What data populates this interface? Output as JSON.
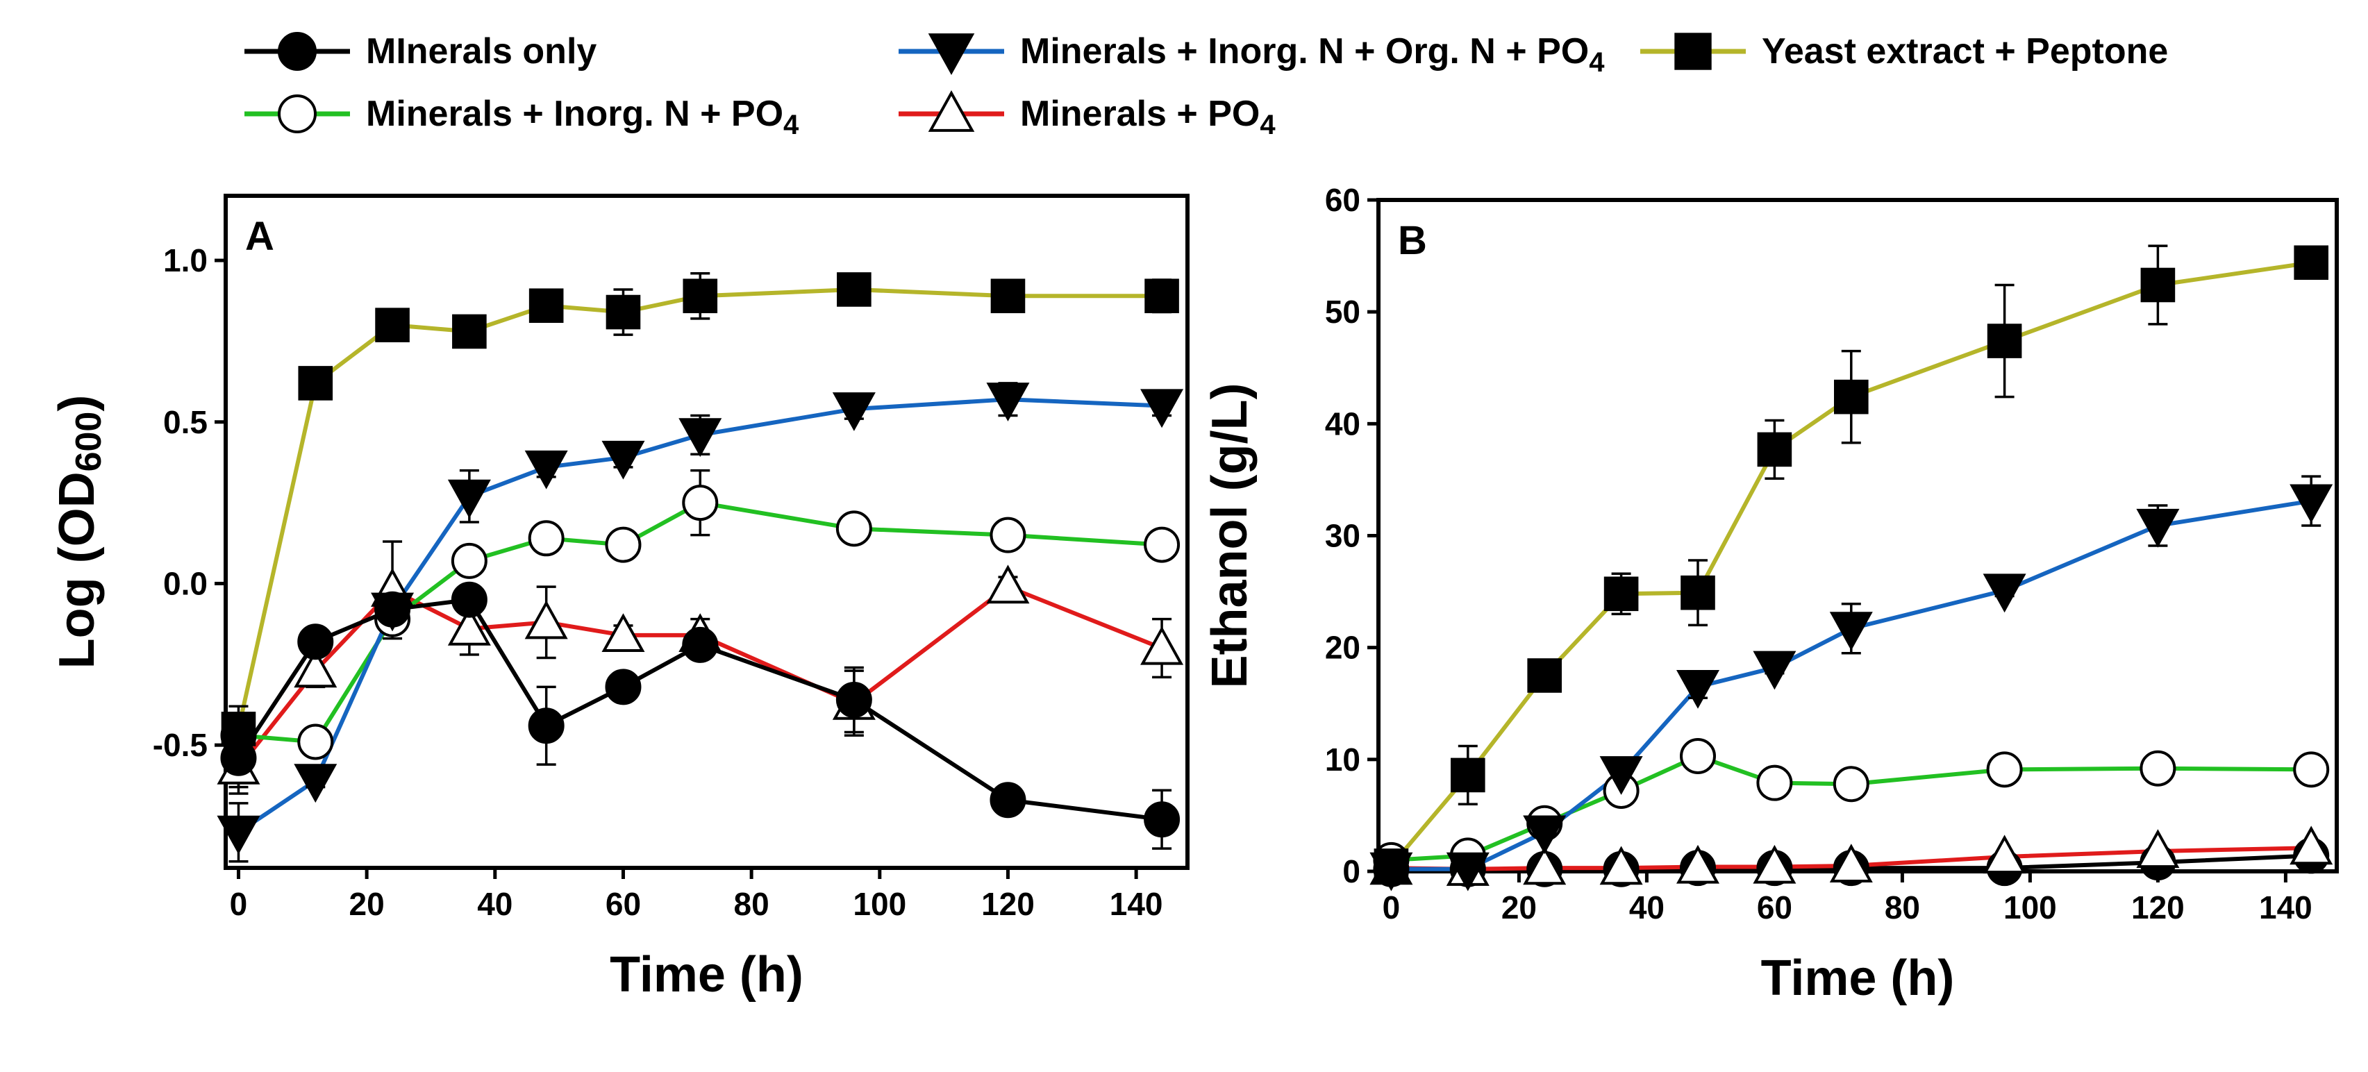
{
  "legend": {
    "entries": [
      {
        "label": "MInerals only",
        "marker": "filled-circle",
        "color": "#000000"
      },
      {
        "label": "Minerals + Inorg. N + Org. N + PO",
        "sub": "4",
        "marker": "filled-down-triangle",
        "color": "#1565c0"
      },
      {
        "label": "Yeast extract + Peptone",
        "marker": "filled-square",
        "color": "#b5b52a"
      },
      {
        "label": "Minerals + Inorg. N + PO",
        "sub": "4",
        "marker": "open-circle",
        "color": "#22c022"
      },
      {
        "label": "Minerals + PO",
        "sub": "4",
        "marker": "open-up-triangle",
        "color": "#e01b1b"
      }
    ]
  },
  "chart_data": [
    {
      "type": "line",
      "panel_label": "A",
      "xlabel": "Time (h)",
      "ylabel_main": "Log (OD",
      "ylabel_sub": "600",
      "ylabel_close": ")",
      "xlim": [
        -2,
        148
      ],
      "ylim": [
        -0.88,
        1.2
      ],
      "xticks": [
        0,
        20,
        40,
        60,
        80,
        100,
        120,
        140
      ],
      "xtick_labels": [
        "0",
        "20",
        "40",
        "60",
        "80",
        "100",
        "120",
        "140"
      ],
      "yticks": [
        -0.5,
        0,
        0.5,
        1.0
      ],
      "ytick_labels": [
        "-0.5",
        "0.0",
        "0.5",
        "1.0"
      ],
      "series": [
        {
          "name": "Minerals + PO4",
          "color": "#e01b1b",
          "marker": "open-up-triangle",
          "x": [
            0,
            12,
            24,
            36,
            48,
            60,
            72,
            96,
            120,
            144
          ],
          "y": [
            -0.57,
            -0.27,
            -0.02,
            -0.14,
            -0.12,
            -0.16,
            -0.16,
            -0.37,
            -0.01,
            -0.2
          ],
          "err": [
            0.08,
            0.05,
            0.15,
            0.08,
            0.11,
            0.03,
            0.05,
            0.1,
            0.03,
            0.09
          ]
        },
        {
          "name": "Minerals + Inorg. N + PO4",
          "color": "#22c022",
          "marker": "open-circle",
          "x": [
            0,
            12,
            24,
            36,
            48,
            60,
            72,
            96,
            120,
            144
          ],
          "y": [
            -0.47,
            -0.49,
            -0.11,
            0.07,
            0.14,
            0.12,
            0.25,
            0.17,
            0.15,
            0.12
          ],
          "err": [
            0.03,
            0.03,
            0.04,
            0.03,
            0.02,
            0.03,
            0.1,
            0.02,
            0.02,
            0.02
          ]
        },
        {
          "name": "MInerals only",
          "color": "#000000",
          "marker": "filled-circle",
          "x": [
            0,
            12,
            24,
            36,
            48,
            60,
            72,
            96,
            120,
            144
          ],
          "y": [
            -0.54,
            -0.18,
            -0.08,
            -0.05,
            -0.44,
            -0.32,
            -0.19,
            -0.36,
            -0.67,
            -0.73
          ],
          "err": [
            0.09,
            0.03,
            0.03,
            0.04,
            0.12,
            0.03,
            0.04,
            0.1,
            0.02,
            0.09
          ]
        },
        {
          "name": "Minerals + Inorg. N + Org. N + PO4",
          "color": "#1565c0",
          "marker": "filled-down-triangle",
          "x": [
            0,
            12,
            24,
            36,
            48,
            60,
            72,
            96,
            120,
            144
          ],
          "y": [
            -0.77,
            -0.61,
            -0.08,
            0.27,
            0.36,
            0.39,
            0.46,
            0.54,
            0.57,
            0.55
          ],
          "err": [
            0.09,
            0.02,
            0.04,
            0.08,
            0.03,
            0.03,
            0.06,
            0.03,
            0.05,
            0.03
          ]
        },
        {
          "name": "Yeast extract + Peptone",
          "color": "#b5b52a",
          "marker": "filled-square",
          "x": [
            0,
            12,
            24,
            36,
            48,
            60,
            72,
            96,
            120,
            144
          ],
          "y": [
            -0.45,
            0.62,
            0.8,
            0.78,
            0.86,
            0.84,
            0.89,
            0.91,
            0.89,
            0.89
          ],
          "err": [
            0.07,
            0.02,
            0.02,
            0.02,
            0.02,
            0.07,
            0.07,
            0.02,
            0.03,
            0.05
          ]
        }
      ]
    },
    {
      "type": "line",
      "panel_label": "B",
      "xlabel": "Time (h)",
      "ylabel_main": "Ethanol (g/L)",
      "ylabel_sub": "",
      "ylabel_close": "",
      "xlim": [
        -2,
        148
      ],
      "ylim": [
        0,
        60
      ],
      "xticks": [
        0,
        20,
        40,
        60,
        80,
        100,
        120,
        140
      ],
      "xtick_labels": [
        "0",
        "20",
        "40",
        "60",
        "80",
        "100",
        "120",
        "140"
      ],
      "yticks": [
        0,
        10,
        20,
        30,
        40,
        50,
        60
      ],
      "ytick_labels": [
        "0",
        "10",
        "20",
        "30",
        "40",
        "50",
        "60"
      ],
      "series": [
        {
          "name": "MInerals only",
          "color": "#000000",
          "marker": "filled-circle",
          "x": [
            0,
            12,
            24,
            36,
            48,
            60,
            72,
            96,
            120,
            144
          ],
          "y": [
            0.2,
            0.2,
            0.2,
            0.2,
            0.3,
            0.3,
            0.3,
            0.3,
            0.8,
            1.4
          ],
          "err": [
            0,
            0,
            0,
            0,
            0,
            0,
            0,
            0,
            0,
            0
          ]
        },
        {
          "name": "Minerals + PO4",
          "color": "#e01b1b",
          "marker": "open-up-triangle",
          "x": [
            0,
            12,
            24,
            36,
            48,
            60,
            72,
            96,
            120,
            144
          ],
          "y": [
            0.3,
            0.2,
            0.3,
            0.3,
            0.4,
            0.4,
            0.5,
            1.3,
            1.8,
            2.1
          ],
          "err": [
            0,
            0,
            0,
            0,
            0,
            0,
            0,
            0,
            0,
            0
          ]
        },
        {
          "name": "Minerals + Inorg. N + PO4",
          "color": "#22c022",
          "marker": "open-circle",
          "x": [
            0,
            12,
            24,
            36,
            48,
            60,
            72,
            96,
            120,
            144
          ],
          "y": [
            1.0,
            1.4,
            4.3,
            7.2,
            10.3,
            7.9,
            7.8,
            9.1,
            9.2,
            9.1
          ],
          "err": [
            0,
            0,
            0,
            0.5,
            0.5,
            0,
            0,
            0,
            0,
            0
          ]
        },
        {
          "name": "Minerals + Inorg. N + Org. N + PO4",
          "color": "#1565c0",
          "marker": "filled-down-triangle",
          "x": [
            0,
            12,
            24,
            36,
            48,
            60,
            72,
            96,
            120,
            144
          ],
          "y": [
            0.2,
            0.2,
            3.5,
            8.8,
            16.5,
            18.2,
            21.7,
            25.1,
            30.9,
            33.1
          ],
          "err": [
            0,
            0,
            0.4,
            0.8,
            1.0,
            0.5,
            2.2,
            0.5,
            1.8,
            2.2
          ]
        },
        {
          "name": "Yeast extract + Peptone",
          "color": "#b5b52a",
          "marker": "filled-square",
          "x": [
            0,
            12,
            24,
            36,
            48,
            60,
            72,
            96,
            120,
            144
          ],
          "y": [
            0.5,
            8.6,
            17.5,
            24.8,
            24.9,
            37.7,
            42.4,
            47.4,
            52.4,
            54.4
          ],
          "err": [
            0,
            2.6,
            0.5,
            1.8,
            2.9,
            2.6,
            4.1,
            5.0,
            3.5,
            0.8
          ]
        }
      ]
    }
  ]
}
